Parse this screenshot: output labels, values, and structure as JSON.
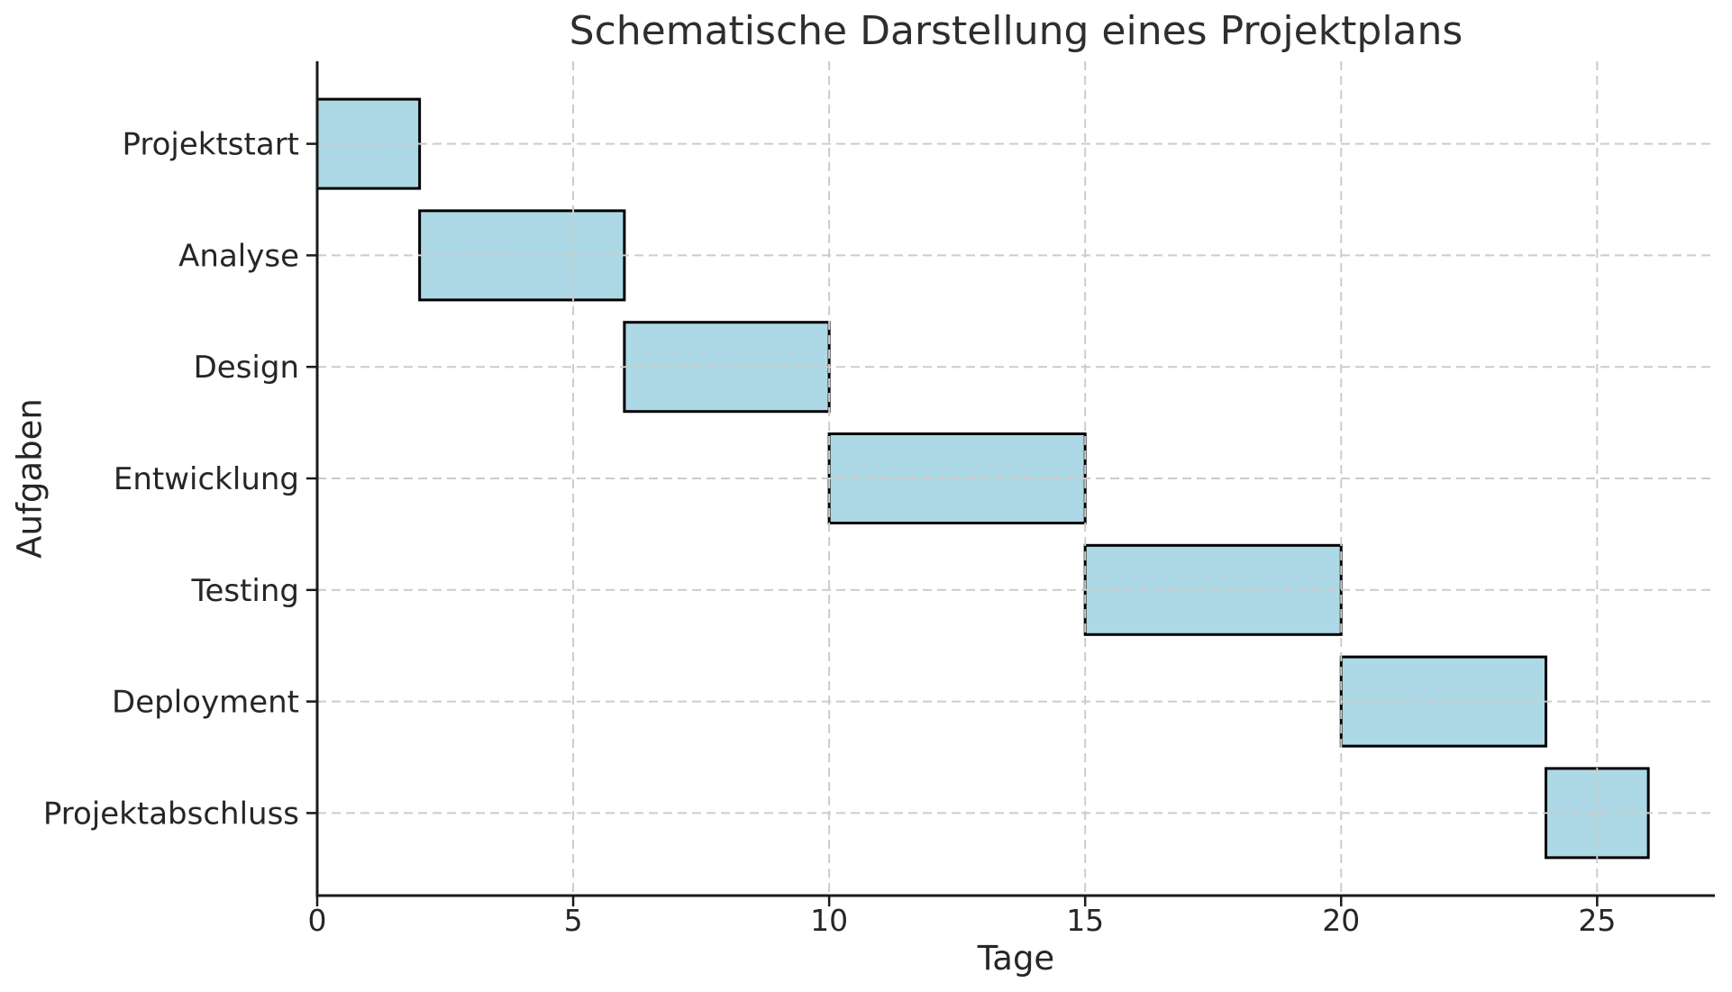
{
  "chart_data": {
    "type": "bar",
    "orientation": "horizontal",
    "title": "Schematische Darstellung eines Projektplans",
    "xlabel": "Tage",
    "ylabel": "Aufgaben",
    "categories": [
      "Projektstart",
      "Analyse",
      "Design",
      "Entwicklung",
      "Testing",
      "Deployment",
      "Projektabschluss"
    ],
    "tasks": [
      {
        "label": "Projektstart",
        "start": 0,
        "duration": 2,
        "end": 2
      },
      {
        "label": "Analyse",
        "start": 2,
        "duration": 4,
        "end": 6
      },
      {
        "label": "Design",
        "start": 6,
        "duration": 4,
        "end": 10
      },
      {
        "label": "Entwicklung",
        "start": 10,
        "duration": 5,
        "end": 15
      },
      {
        "label": "Testing",
        "start": 15,
        "duration": 5,
        "end": 20
      },
      {
        "label": "Deployment",
        "start": 20,
        "duration": 4,
        "end": 24
      },
      {
        "label": "Projektabschluss",
        "start": 24,
        "duration": 2,
        "end": 26
      }
    ],
    "x_ticks": [
      0,
      5,
      10,
      15,
      20,
      25
    ],
    "xlim": [
      0,
      27.3
    ],
    "grid": true,
    "grid_style": "dashed",
    "legend": false,
    "colors": {
      "bar_fill": "#ADD8E6",
      "bar_edge": "#000000",
      "grid": "#cccccc",
      "spine": "#1a1a1a",
      "text": "#262626"
    }
  }
}
